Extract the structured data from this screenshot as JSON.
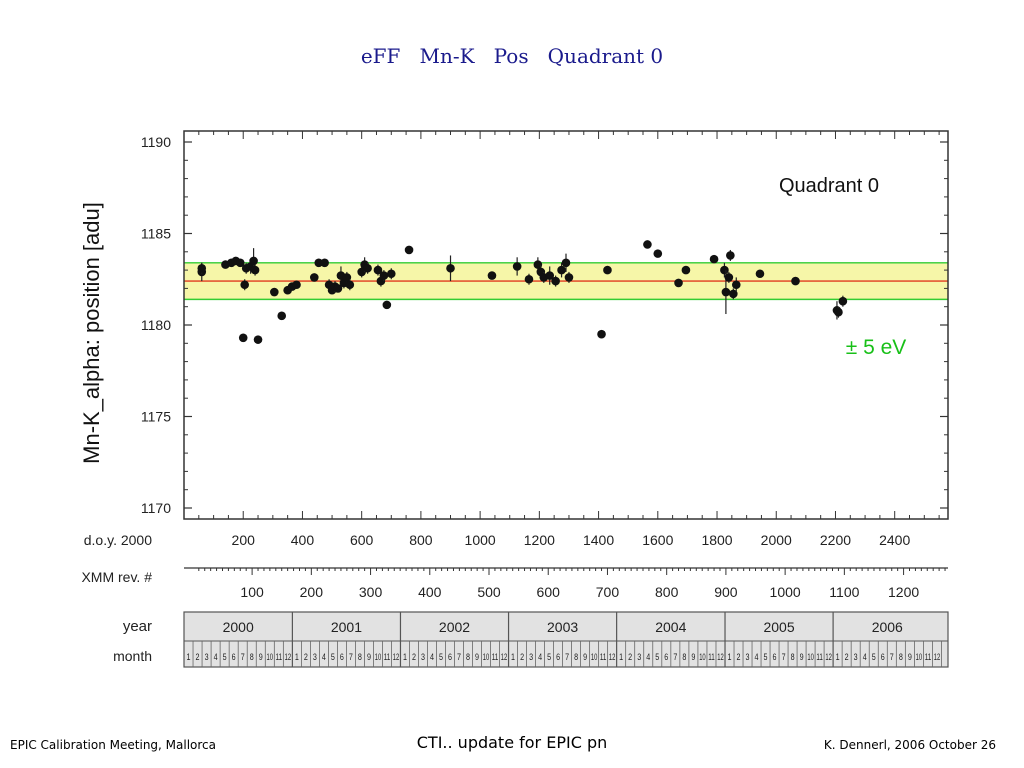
{
  "slide": {
    "title": "eFF   Mn-K   Pos   Quadrant 0",
    "footer_left": "EPIC Calibration Meeting, Mallorca",
    "footer_center": "CTI.. update for EPIC pn",
    "footer_right": "K. Dennerl, 2006 October 26"
  },
  "chart_data": {
    "type": "scatter",
    "title": "Quadrant 0",
    "ylabel": "Mn-K_alpha:  position  [adu]",
    "ylim": [
      1170,
      1190
    ],
    "yticks": [
      1170,
      1175,
      1180,
      1185,
      1190
    ],
    "xlim": [
      0,
      2580
    ],
    "xlabel_doy": "d.o.y. 2000",
    "xticks_doy": [
      200,
      400,
      600,
      800,
      1000,
      1200,
      1400,
      1600,
      1800,
      2000,
      2200,
      2400
    ],
    "xlabel_rev": "XMM rev. #",
    "xticks_rev": [
      100,
      200,
      300,
      400,
      500,
      600,
      700,
      800,
      900,
      1000,
      1100,
      1200
    ],
    "rev_start_doy": 30,
    "rev_period_days": 2,
    "year_label": "year",
    "month_label": "month",
    "years": [
      "2000",
      "2001",
      "2002",
      "2003",
      "2004",
      "2005",
      "2006"
    ],
    "year_starts_doy": [
      0,
      366,
      731,
      1096,
      1461,
      1827,
      2192
    ],
    "last_year_months": 13,
    "annotation": "± 5 eV",
    "band": {
      "center": 1182.4,
      "low": 1181.4,
      "high": 1183.4,
      "fill": "#f6f6a8",
      "edge": "#33cc33",
      "center_line": "#e03a1f"
    },
    "grid": false,
    "points": [
      {
        "x": 60,
        "y": 1182.9,
        "err": 0.5
      },
      {
        "x": 60,
        "y": 1183.1,
        "err": 0.3
      },
      {
        "x": 140,
        "y": 1183.3,
        "err": 0.2
      },
      {
        "x": 160,
        "y": 1183.4,
        "err": 0.2
      },
      {
        "x": 175,
        "y": 1183.5,
        "err": 0.2
      },
      {
        "x": 190,
        "y": 1183.4,
        "err": 0.2
      },
      {
        "x": 200,
        "y": 1179.3,
        "err": 0.2
      },
      {
        "x": 205,
        "y": 1182.2,
        "err": 0.3
      },
      {
        "x": 210,
        "y": 1183.1,
        "err": 0.3
      },
      {
        "x": 225,
        "y": 1183.2,
        "err": 0.4
      },
      {
        "x": 235,
        "y": 1183.5,
        "err": 0.7
      },
      {
        "x": 240,
        "y": 1183.0,
        "err": 0.3
      },
      {
        "x": 250,
        "y": 1179.2,
        "err": 0.2
      },
      {
        "x": 305,
        "y": 1181.8,
        "err": 0.2
      },
      {
        "x": 330,
        "y": 1180.5,
        "err": 0.2
      },
      {
        "x": 350,
        "y": 1181.9,
        "err": 0.2
      },
      {
        "x": 365,
        "y": 1182.1,
        "err": 0.2
      },
      {
        "x": 380,
        "y": 1182.2,
        "err": 0.2
      },
      {
        "x": 440,
        "y": 1182.6,
        "err": 0.2
      },
      {
        "x": 455,
        "y": 1183.4,
        "err": 0.2
      },
      {
        "x": 475,
        "y": 1183.4,
        "err": 0.2
      },
      {
        "x": 490,
        "y": 1182.2,
        "err": 0.3
      },
      {
        "x": 500,
        "y": 1181.9,
        "err": 0.2
      },
      {
        "x": 510,
        "y": 1182.1,
        "err": 0.3
      },
      {
        "x": 520,
        "y": 1182.0,
        "err": 0.2
      },
      {
        "x": 530,
        "y": 1182.7,
        "err": 0.5
      },
      {
        "x": 540,
        "y": 1182.3,
        "err": 0.3
      },
      {
        "x": 550,
        "y": 1182.6,
        "err": 0.3
      },
      {
        "x": 560,
        "y": 1182.2,
        "err": 0.3
      },
      {
        "x": 600,
        "y": 1182.9,
        "err": 0.3
      },
      {
        "x": 610,
        "y": 1183.3,
        "err": 0.4
      },
      {
        "x": 620,
        "y": 1183.1,
        "err": 0.3
      },
      {
        "x": 655,
        "y": 1183.0,
        "err": 0.3
      },
      {
        "x": 665,
        "y": 1182.4,
        "err": 0.3
      },
      {
        "x": 675,
        "y": 1182.7,
        "err": 0.3
      },
      {
        "x": 685,
        "y": 1181.1,
        "err": 0.2
      },
      {
        "x": 700,
        "y": 1182.8,
        "err": 0.3
      },
      {
        "x": 760,
        "y": 1184.1,
        "err": 0.2
      },
      {
        "x": 900,
        "y": 1183.1,
        "err": 0.7
      },
      {
        "x": 1040,
        "y": 1182.7,
        "err": 0.2
      },
      {
        "x": 1125,
        "y": 1183.2,
        "err": 0.5
      },
      {
        "x": 1165,
        "y": 1182.5,
        "err": 0.3
      },
      {
        "x": 1195,
        "y": 1183.3,
        "err": 0.4
      },
      {
        "x": 1205,
        "y": 1182.9,
        "err": 0.4
      },
      {
        "x": 1215,
        "y": 1182.6,
        "err": 0.3
      },
      {
        "x": 1235,
        "y": 1182.7,
        "err": 0.5
      },
      {
        "x": 1255,
        "y": 1182.4,
        "err": 0.3
      },
      {
        "x": 1275,
        "y": 1183.0,
        "err": 0.4
      },
      {
        "x": 1290,
        "y": 1183.4,
        "err": 0.5
      },
      {
        "x": 1300,
        "y": 1182.6,
        "err": 0.3
      },
      {
        "x": 1410,
        "y": 1179.5,
        "err": 0.2
      },
      {
        "x": 1430,
        "y": 1183.0,
        "err": 0.2
      },
      {
        "x": 1565,
        "y": 1184.4,
        "err": 0.2
      },
      {
        "x": 1600,
        "y": 1183.9,
        "err": 0.2
      },
      {
        "x": 1670,
        "y": 1182.3,
        "err": 0.2
      },
      {
        "x": 1695,
        "y": 1183.0,
        "err": 0.2
      },
      {
        "x": 1790,
        "y": 1183.6,
        "err": 0.2
      },
      {
        "x": 1825,
        "y": 1183.0,
        "err": 0.4
      },
      {
        "x": 1830,
        "y": 1181.8,
        "err": 1.2
      },
      {
        "x": 1840,
        "y": 1182.6,
        "err": 0.3
      },
      {
        "x": 1845,
        "y": 1183.8,
        "err": 0.3
      },
      {
        "x": 1855,
        "y": 1181.7,
        "err": 0.3
      },
      {
        "x": 1865,
        "y": 1182.2,
        "err": 0.4
      },
      {
        "x": 1945,
        "y": 1182.8,
        "err": 0.2
      },
      {
        "x": 2065,
        "y": 1182.4,
        "err": 0.2
      },
      {
        "x": 2205,
        "y": 1180.8,
        "err": 0.5
      },
      {
        "x": 2210,
        "y": 1180.7,
        "err": 0.3
      },
      {
        "x": 2225,
        "y": 1181.3,
        "err": 0.3
      }
    ]
  }
}
